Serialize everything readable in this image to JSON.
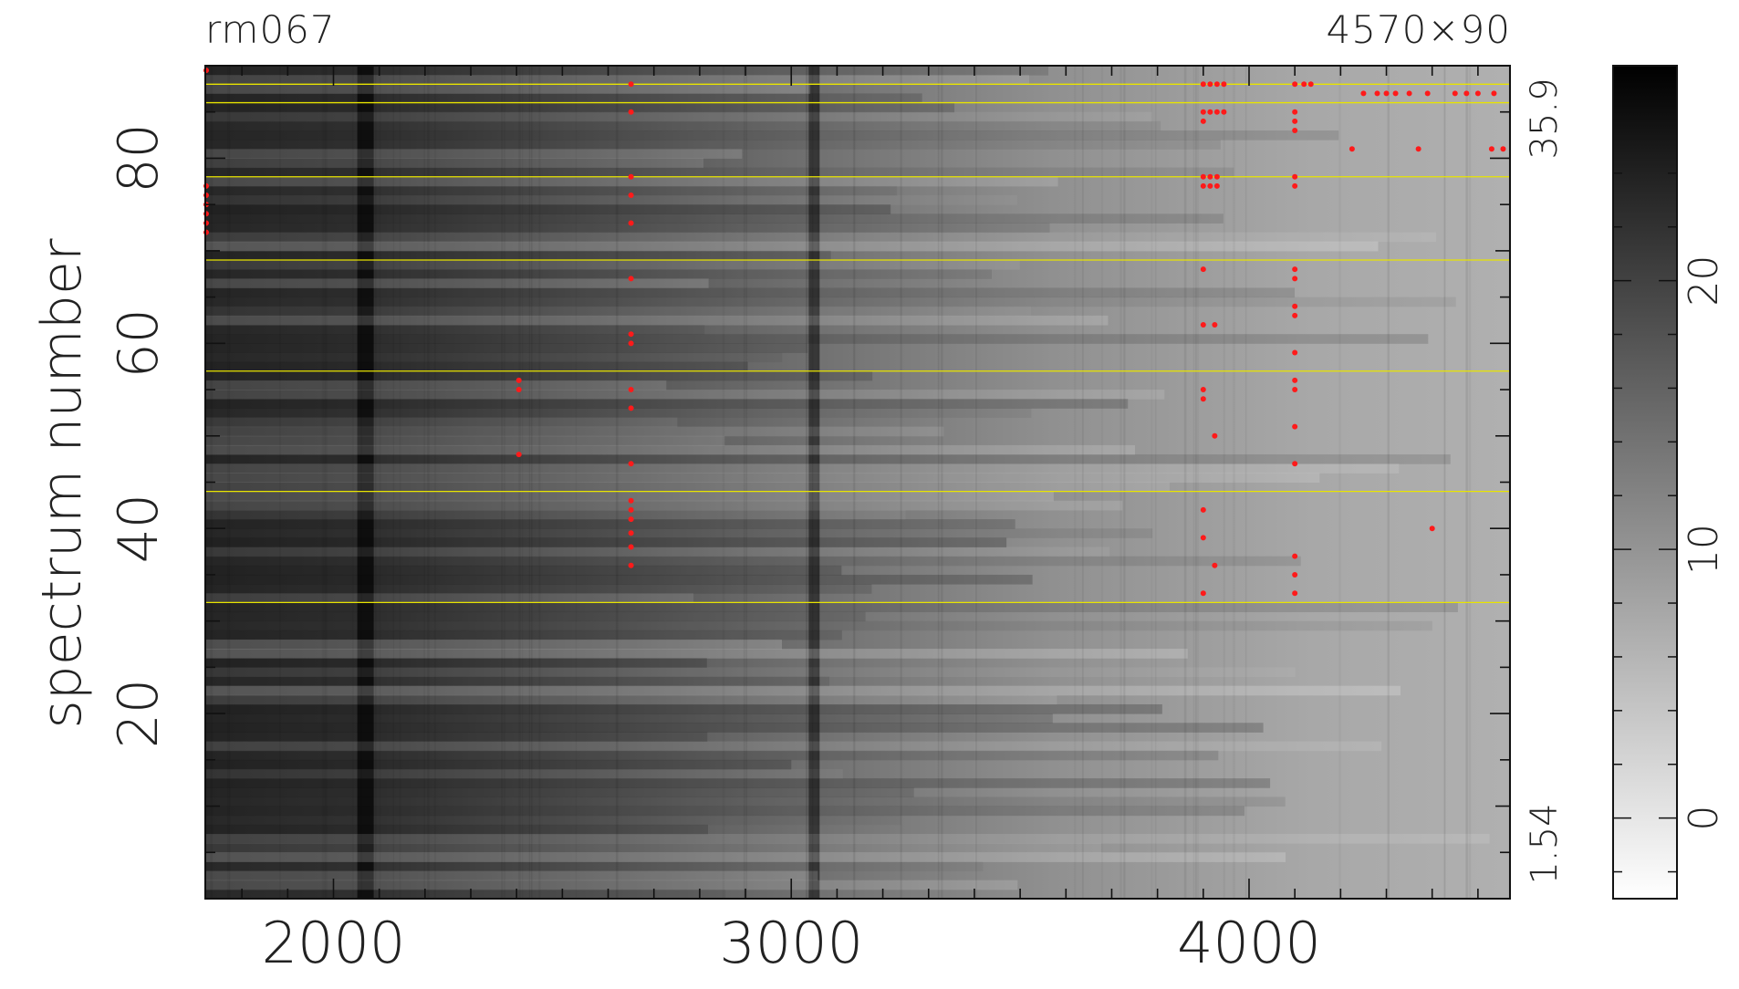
{
  "header": {
    "title": "rm067",
    "dimensions": "4570×90"
  },
  "chart_data": {
    "type": "heatmap",
    "colormap": "grayscale-inverted",
    "xlabel": "",
    "ylabel": "spectrum number",
    "xlim": [
      1720,
      4570
    ],
    "ylim": [
      0,
      90
    ],
    "x_ticks": [
      "2000",
      "3000",
      "4000"
    ],
    "y_ticks": [
      "20",
      "40",
      "60",
      "80"
    ],
    "y_range_labels": {
      "max": "35.9",
      "min": "1.54"
    },
    "colorbar": {
      "range": [
        -3,
        28
      ],
      "ticks": [
        "0",
        "10",
        "20"
      ]
    },
    "background_gradient_note": "dark at low x, light at high x",
    "dark_columns_x": [
      2070,
      3050
    ],
    "marked_rows": [
      32,
      44,
      57,
      69,
      78,
      86,
      88
    ],
    "bad_pixels": [
      {
        "x": 1722,
        "y": 89.5
      },
      {
        "x": 1722,
        "y": 77
      },
      {
        "x": 1722,
        "y": 76
      },
      {
        "x": 1722,
        "y": 75
      },
      {
        "x": 1722,
        "y": 74
      },
      {
        "x": 1722,
        "y": 73
      },
      {
        "x": 1722,
        "y": 72
      },
      {
        "x": 2650,
        "y": 43
      },
      {
        "x": 2650,
        "y": 42
      },
      {
        "x": 2650,
        "y": 41
      },
      {
        "x": 2650,
        "y": 39.5
      },
      {
        "x": 2650,
        "y": 38
      },
      {
        "x": 2650,
        "y": 36
      },
      {
        "x": 2650,
        "y": 47
      },
      {
        "x": 2650,
        "y": 53
      },
      {
        "x": 2650,
        "y": 55
      },
      {
        "x": 2650,
        "y": 60
      },
      {
        "x": 2650,
        "y": 61
      },
      {
        "x": 2650,
        "y": 67
      },
      {
        "x": 2650,
        "y": 73
      },
      {
        "x": 2650,
        "y": 76
      },
      {
        "x": 2650,
        "y": 78
      },
      {
        "x": 2650,
        "y": 85
      },
      {
        "x": 2650,
        "y": 88
      },
      {
        "x": 2405,
        "y": 56
      },
      {
        "x": 2405,
        "y": 55
      },
      {
        "x": 2405,
        "y": 48
      },
      {
        "x": 3900,
        "y": 33
      },
      {
        "x": 3900,
        "y": 39
      },
      {
        "x": 3900,
        "y": 42
      },
      {
        "x": 3900,
        "y": 54
      },
      {
        "x": 3900,
        "y": 55
      },
      {
        "x": 3900,
        "y": 62
      },
      {
        "x": 3900,
        "y": 68
      },
      {
        "x": 3900,
        "y": 78
      },
      {
        "x": 3900,
        "y": 77
      },
      {
        "x": 3900,
        "y": 84
      },
      {
        "x": 3900,
        "y": 85
      },
      {
        "x": 3900,
        "y": 88
      },
      {
        "x": 3925,
        "y": 50
      },
      {
        "x": 3925,
        "y": 36
      },
      {
        "x": 3925,
        "y": 62
      },
      {
        "x": 3915,
        "y": 88
      },
      {
        "x": 3915,
        "y": 85
      },
      {
        "x": 3915,
        "y": 78
      },
      {
        "x": 3915,
        "y": 77
      },
      {
        "x": 3930,
        "y": 88
      },
      {
        "x": 3930,
        "y": 85
      },
      {
        "x": 3930,
        "y": 78
      },
      {
        "x": 3930,
        "y": 77
      },
      {
        "x": 3945,
        "y": 88
      },
      {
        "x": 3945,
        "y": 85
      },
      {
        "x": 4100,
        "y": 33
      },
      {
        "x": 4100,
        "y": 35
      },
      {
        "x": 4100,
        "y": 37
      },
      {
        "x": 4100,
        "y": 47
      },
      {
        "x": 4100,
        "y": 51
      },
      {
        "x": 4100,
        "y": 55
      },
      {
        "x": 4100,
        "y": 56
      },
      {
        "x": 4100,
        "y": 59
      },
      {
        "x": 4100,
        "y": 63
      },
      {
        "x": 4100,
        "y": 64
      },
      {
        "x": 4100,
        "y": 67
      },
      {
        "x": 4100,
        "y": 68
      },
      {
        "x": 4100,
        "y": 77
      },
      {
        "x": 4100,
        "y": 78
      },
      {
        "x": 4100,
        "y": 83
      },
      {
        "x": 4100,
        "y": 84
      },
      {
        "x": 4100,
        "y": 85
      },
      {
        "x": 4100,
        "y": 88
      },
      {
        "x": 4120,
        "y": 88
      },
      {
        "x": 4135,
        "y": 88
      },
      {
        "x": 4225,
        "y": 81
      },
      {
        "x": 4250,
        "y": 87
      },
      {
        "x": 4280,
        "y": 87
      },
      {
        "x": 4300,
        "y": 87
      },
      {
        "x": 4320,
        "y": 87
      },
      {
        "x": 4350,
        "y": 87
      },
      {
        "x": 4370,
        "y": 81
      },
      {
        "x": 4390,
        "y": 87
      },
      {
        "x": 4400,
        "y": 40
      },
      {
        "x": 4450,
        "y": 87
      },
      {
        "x": 4475,
        "y": 87
      },
      {
        "x": 4500,
        "y": 87
      },
      {
        "x": 4535,
        "y": 87
      },
      {
        "x": 4555,
        "y": 81
      },
      {
        "x": 4530,
        "y": 81
      }
    ]
  }
}
